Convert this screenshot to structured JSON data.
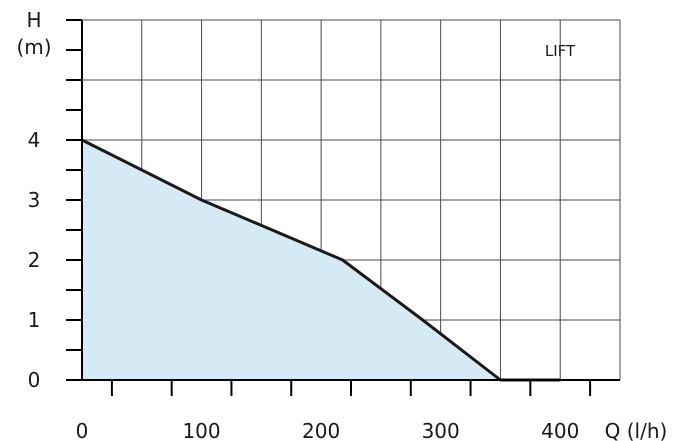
{
  "chart_data": {
    "type": "area",
    "y_axis_title_line1": "H",
    "y_axis_title_line2": "(m)",
    "x_axis_title": "Q (l/h)",
    "annotation": "LIFT",
    "xlim": [
      0,
      450
    ],
    "ylim": [
      0,
      6
    ],
    "x_ticks": [
      0,
      100,
      200,
      300,
      400
    ],
    "y_ticks": [
      0,
      1,
      2,
      3,
      4
    ],
    "grid": true,
    "series": [
      {
        "x": [
          0,
          100,
          218,
          285,
          350,
          400
        ],
        "y": [
          4,
          3,
          2,
          1,
          0,
          0
        ]
      }
    ],
    "colors": {
      "fill": "#d6eaf5",
      "line": "#1a1a1a",
      "grid": "#4a4a4a"
    }
  }
}
